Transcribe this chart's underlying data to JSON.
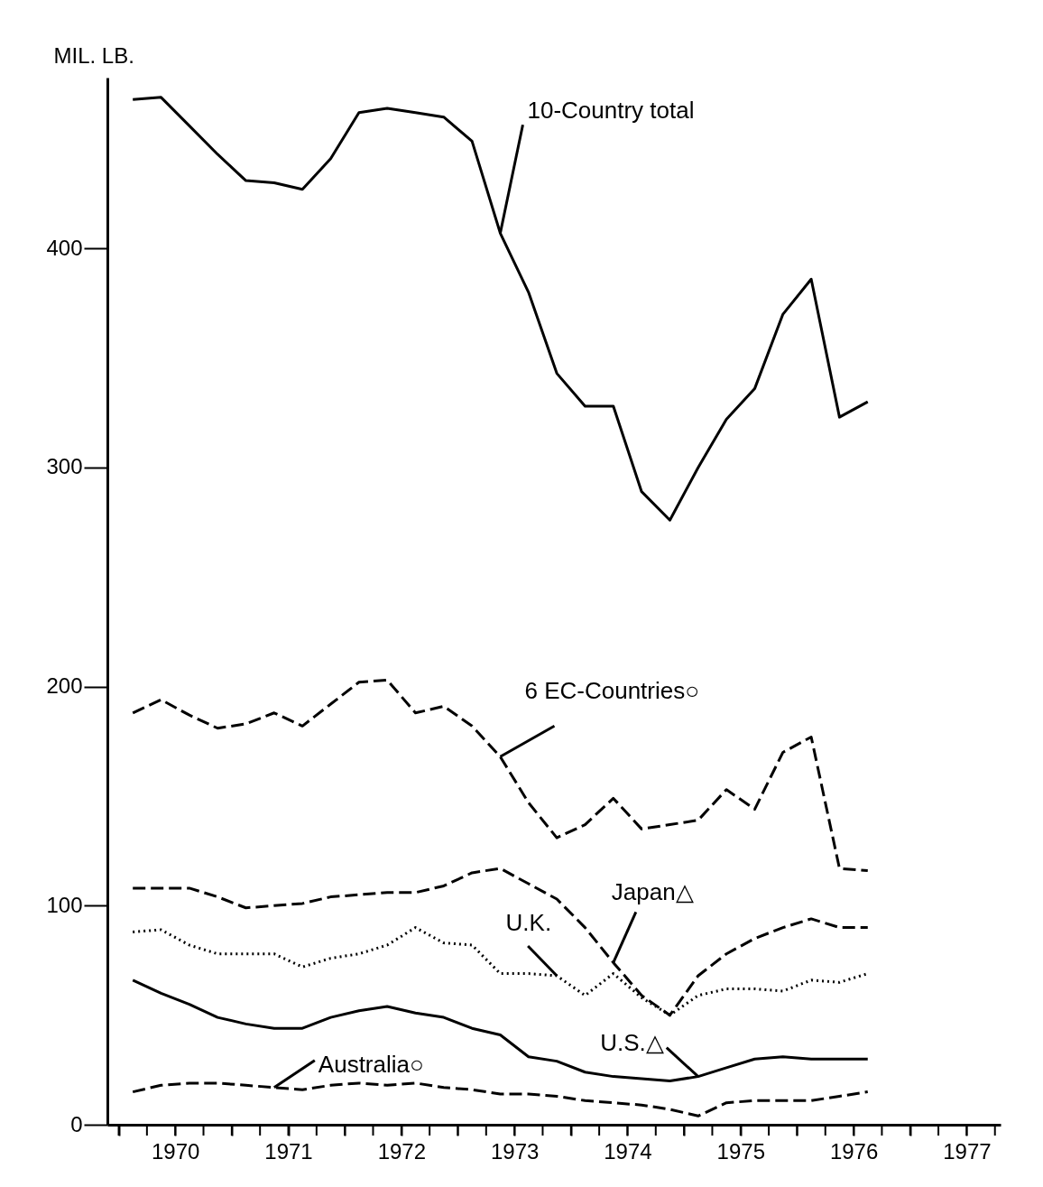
{
  "chart_data": {
    "type": "line",
    "ylabel": "MIL. LB.",
    "grid": false,
    "x": [
      1970.125,
      1970.375,
      1970.625,
      1970.875,
      1971.125,
      1971.375,
      1971.625,
      1971.875,
      1972.125,
      1972.375,
      1972.625,
      1972.875,
      1973.125,
      1973.375,
      1973.625,
      1973.875,
      1974.125,
      1974.375,
      1974.625,
      1974.875,
      1975.125,
      1975.375,
      1975.625,
      1975.875,
      1976.125,
      1976.375,
      1976.625
    ],
    "xlim": [
      1969.9,
      1977.8
    ],
    "xticks": [
      {
        "value": 1970,
        "label": null
      },
      {
        "value": 1970.25,
        "label": null
      },
      {
        "value": 1970.5,
        "label": "1970"
      },
      {
        "value": 1970.75,
        "label": null
      },
      {
        "value": 1971,
        "label": null
      },
      {
        "value": 1971.25,
        "label": null
      },
      {
        "value": 1971.5,
        "label": "1971"
      },
      {
        "value": 1971.75,
        "label": null
      },
      {
        "value": 1972,
        "label": null
      },
      {
        "value": 1972.25,
        "label": null
      },
      {
        "value": 1972.5,
        "label": "1972"
      },
      {
        "value": 1972.75,
        "label": null
      },
      {
        "value": 1973,
        "label": null
      },
      {
        "value": 1973.25,
        "label": null
      },
      {
        "value": 1973.5,
        "label": "1973"
      },
      {
        "value": 1973.75,
        "label": null
      },
      {
        "value": 1974,
        "label": null
      },
      {
        "value": 1974.25,
        "label": null
      },
      {
        "value": 1974.5,
        "label": "1974"
      },
      {
        "value": 1974.75,
        "label": null
      },
      {
        "value": 1975,
        "label": null
      },
      {
        "value": 1975.25,
        "label": null
      },
      {
        "value": 1975.5,
        "label": "1975"
      },
      {
        "value": 1975.75,
        "label": null
      },
      {
        "value": 1976,
        "label": null
      },
      {
        "value": 1976.25,
        "label": null
      },
      {
        "value": 1976.5,
        "label": "1976"
      },
      {
        "value": 1976.75,
        "label": null
      },
      {
        "value": 1977,
        "label": null
      },
      {
        "value": 1977.25,
        "label": null
      },
      {
        "value": 1977.5,
        "label": "1977"
      },
      {
        "value": 1977.75,
        "label": null
      }
    ],
    "ylim": [
      0,
      478
    ],
    "yticks": [
      0,
      100,
      200,
      300,
      400
    ],
    "series": [
      {
        "color": "#000000",
        "line_style": "solid",
        "values": [
          468,
          469,
          456,
          443,
          431,
          430,
          427,
          441,
          462,
          464,
          462,
          460,
          449,
          407,
          380,
          343,
          328,
          328,
          289,
          276,
          300,
          322,
          336,
          370,
          386,
          323,
          330
        ]
      },
      {
        "color": "#000000",
        "line_style": "dashed",
        "values": [
          188,
          194,
          187,
          181,
          183,
          188,
          182,
          192,
          202,
          203,
          188,
          191,
          182,
          168,
          147,
          131,
          137,
          149,
          135,
          137,
          139,
          153,
          144,
          170,
          177,
          117,
          116
        ]
      },
      {
        "color": "#000000",
        "line_style": "dashed",
        "values": [
          108,
          108,
          108,
          104,
          99,
          100,
          101,
          104,
          105,
          106,
          106,
          109,
          115,
          117,
          110,
          103,
          90,
          74,
          59,
          50,
          68,
          78,
          85,
          90,
          94,
          90,
          90
        ]
      },
      {
        "color": "#000000",
        "line_style": "dotted",
        "values": [
          88,
          89,
          82,
          78,
          78,
          78,
          72,
          76,
          78,
          82,
          90,
          83,
          82,
          69,
          69,
          68,
          59,
          69,
          58,
          50,
          59,
          62,
          62,
          61,
          66,
          65,
          69
        ]
      },
      {
        "color": "#000000",
        "line_style": "solid",
        "values": [
          66,
          60,
          55,
          49,
          46,
          44,
          44,
          49,
          52,
          54,
          51,
          49,
          44,
          41,
          31,
          29,
          24,
          22,
          21,
          20,
          22,
          26,
          30,
          31,
          30,
          30,
          30
        ]
      },
      {
        "color": "#000000",
        "line_style": "dashed",
        "values": [
          15,
          18,
          19,
          19,
          18,
          17,
          16,
          18,
          19,
          18,
          19,
          17,
          16,
          14,
          14,
          13,
          11,
          10,
          9,
          7,
          4,
          10,
          11,
          11,
          11,
          13,
          15
        ]
      }
    ],
    "annotations": [
      {
        "text": "10-Country total",
        "x": 1973.375,
        "y": 407
      },
      {
        "text": "6 EC-Countries○",
        "x": 1973.375,
        "y": 168
      },
      {
        "text": "Japan△",
        "x": 1974.375,
        "y": 74
      },
      {
        "text": "U.K.",
        "x": 1973.875,
        "y": 68
      },
      {
        "text": "U.S.△",
        "x": 1975.125,
        "y": 22
      },
      {
        "text": "Australia○",
        "x": 1971.375,
        "y": 17
      }
    ]
  }
}
